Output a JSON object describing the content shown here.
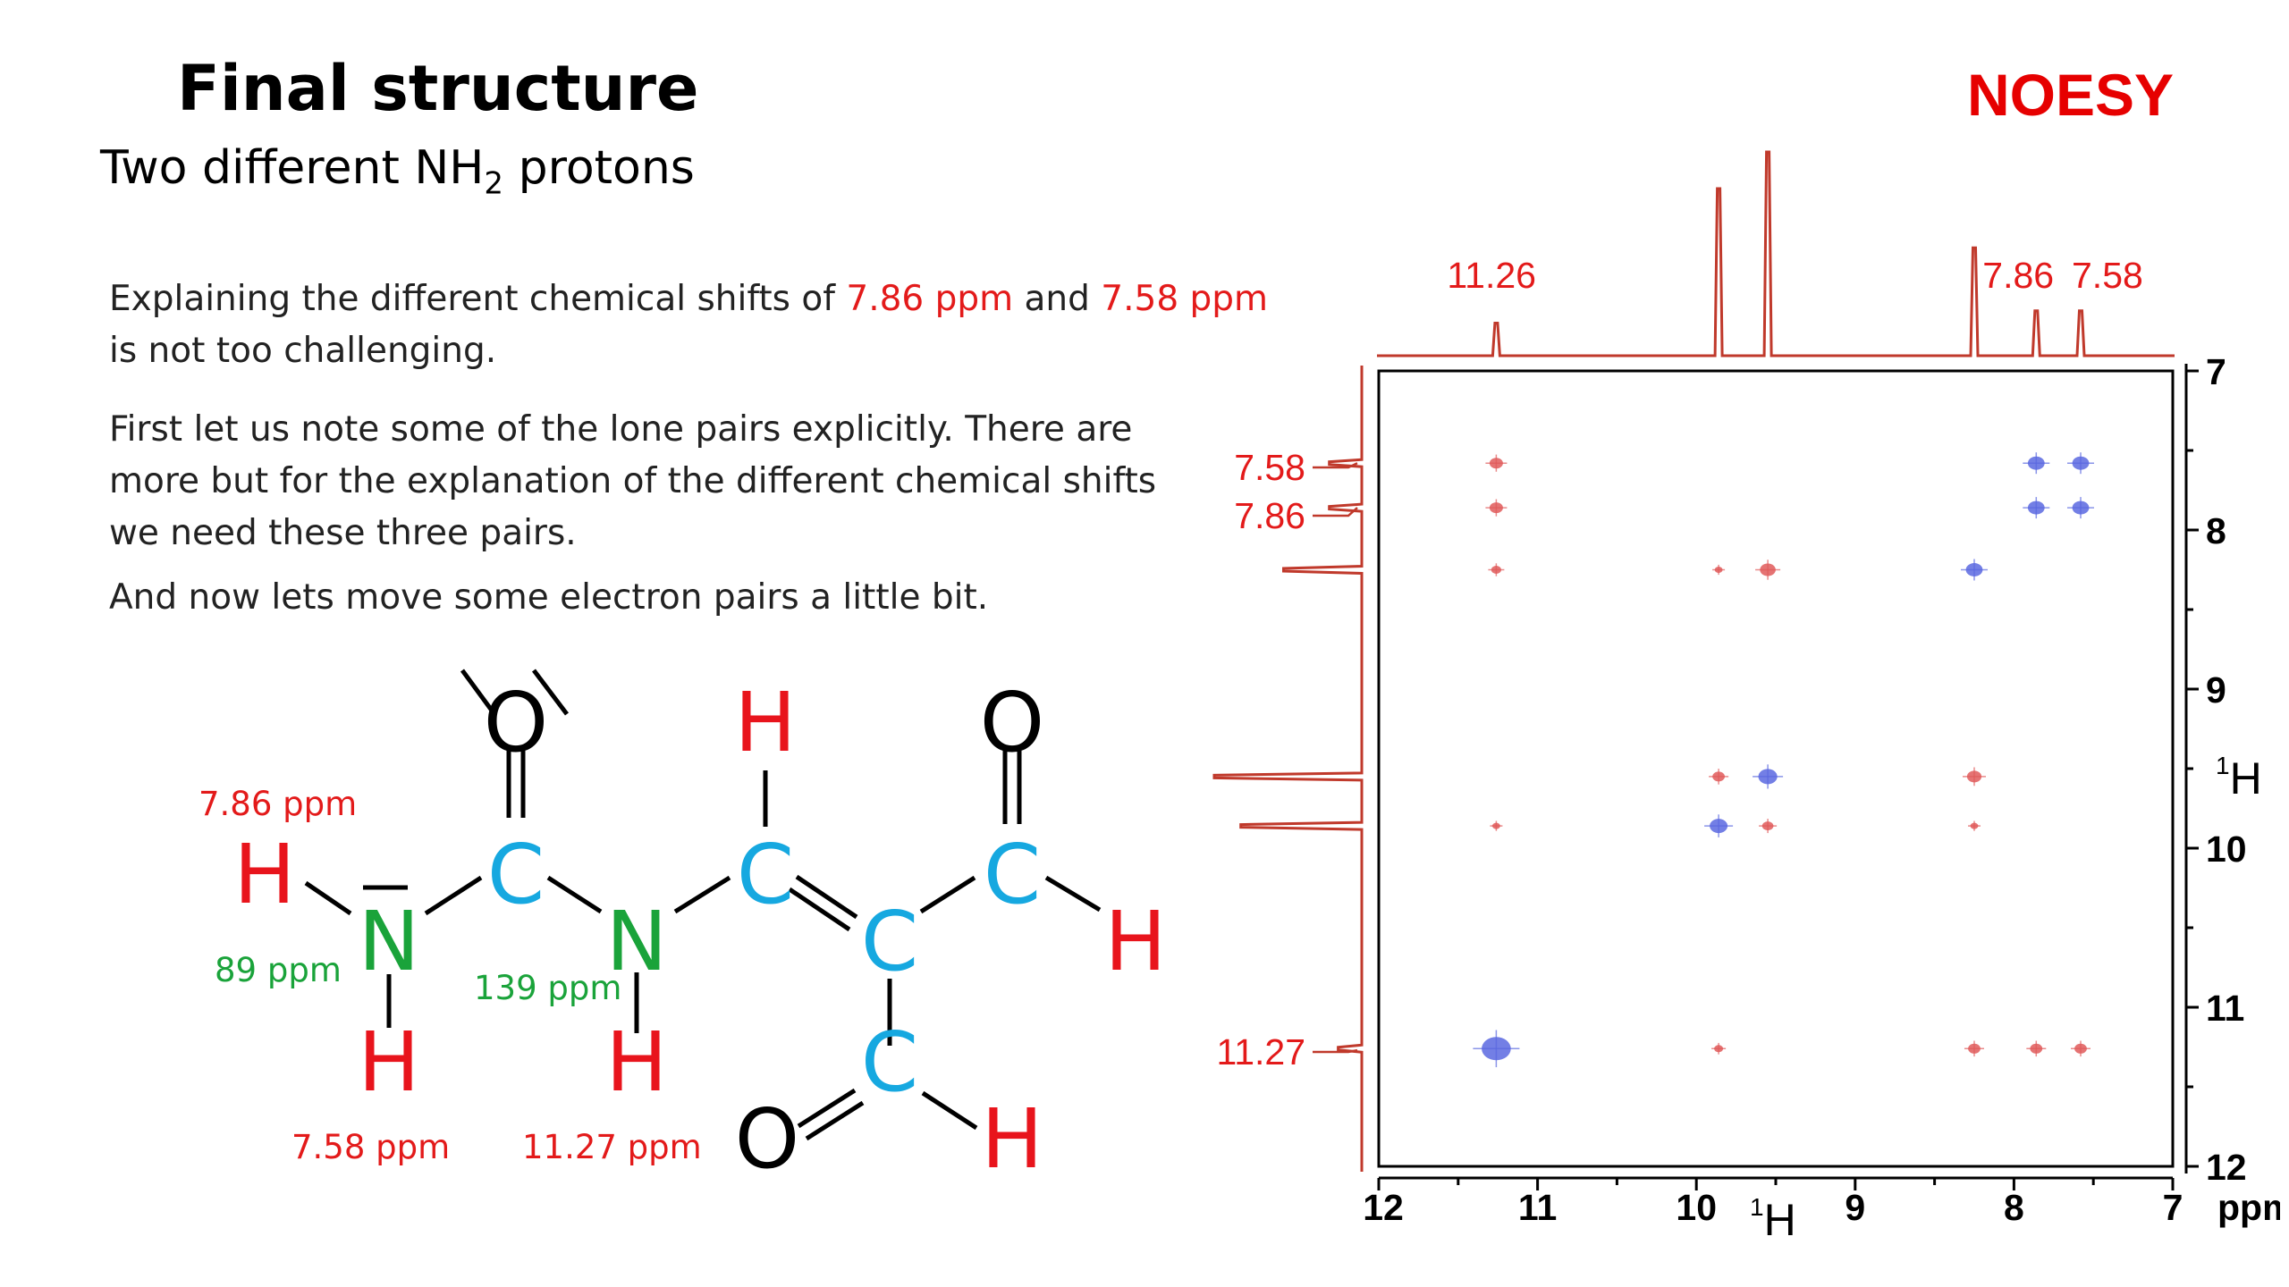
{
  "slide": {
    "title": "Final structure",
    "subtitle_main": "Two different NH",
    "subtitle_sub": "2",
    "subtitle_end": "protons",
    "technique_label": "NOESY",
    "paragraph1": {
      "part1": "Explaining the different chemical shifts of ",
      "shift_a": "7.86 ppm",
      "and": " and ",
      "shift_b": "7.58 ppm",
      "part2": " is not too challenging."
    },
    "paragraph2": "First let us note some of the lone pairs explicitly. There are more but for the explanation of the different chemical shifts we need these three pairs.",
    "paragraph3": "And now lets move some electron pairs a little bit."
  },
  "structure": {
    "atoms": {
      "O": "O",
      "H": "H",
      "C": "C",
      "N": "N"
    },
    "labels": {
      "h_top_left": "7.86 ppm",
      "h_bottom_left": "7.58 ppm",
      "h_nh": "11.27 ppm",
      "n_left": "89 ppm",
      "n_middle": "139 ppm"
    },
    "colors": {
      "hydrogen": "#e8141c",
      "carbon": "#16a8e0",
      "nitrogen": "#1aa33a",
      "oxygen": "#000000",
      "nitrogen_shift_text": "#1aa33a",
      "proton_shift_text": "#e31a1a"
    }
  },
  "spectrum": {
    "axis_color": "#000000",
    "trace_color": "#c0392b",
    "top_labels": [
      "11.26",
      "7.86",
      "7.58"
    ],
    "left_labels": [
      "7.58",
      "7.86",
      "11.27"
    ],
    "x_ticks": [
      "12",
      "11",
      "10",
      "9",
      "8",
      "7"
    ],
    "y_ticks": [
      "7",
      "8",
      "9",
      "10",
      "11",
      "12"
    ],
    "x_axis_nucleus": "1",
    "x_axis_letter": "H",
    "y_axis_nucleus": "1",
    "y_axis_letter": "H",
    "unit": "ppm",
    "x_range": [
      12,
      7
    ],
    "y_range": [
      7,
      12
    ],
    "positive_color": "#e05a5a",
    "negative_color": "#5a68e0",
    "cross_peaks": [
      {
        "x": 11.26,
        "y": 7.58,
        "sign": "pos",
        "size": 1
      },
      {
        "x": 11.26,
        "y": 7.86,
        "sign": "pos",
        "size": 1
      },
      {
        "x": 11.26,
        "y": 8.25,
        "sign": "pos",
        "size": 0.7
      },
      {
        "x": 9.86,
        "y": 8.25,
        "sign": "pos",
        "size": 0.5
      },
      {
        "x": 9.55,
        "y": 8.25,
        "sign": "pos",
        "size": 1.2
      },
      {
        "x": 8.25,
        "y": 8.25,
        "sign": "neg",
        "size": 1.3
      },
      {
        "x": 7.86,
        "y": 7.58,
        "sign": "neg",
        "size": 1.3
      },
      {
        "x": 7.58,
        "y": 7.58,
        "sign": "neg",
        "size": 1.3
      },
      {
        "x": 7.86,
        "y": 7.86,
        "sign": "neg",
        "size": 1.3
      },
      {
        "x": 7.58,
        "y": 7.86,
        "sign": "neg",
        "size": 1.3
      },
      {
        "x": 9.86,
        "y": 9.55,
        "sign": "pos",
        "size": 0.9
      },
      {
        "x": 9.55,
        "y": 9.55,
        "sign": "neg",
        "size": 1.5
      },
      {
        "x": 8.25,
        "y": 9.55,
        "sign": "pos",
        "size": 1.1
      },
      {
        "x": 11.26,
        "y": 9.86,
        "sign": "pos",
        "size": 0.5
      },
      {
        "x": 9.86,
        "y": 9.86,
        "sign": "neg",
        "size": 1.4
      },
      {
        "x": 9.55,
        "y": 9.86,
        "sign": "pos",
        "size": 0.8
      },
      {
        "x": 8.25,
        "y": 9.86,
        "sign": "pos",
        "size": 0.5
      },
      {
        "x": 11.26,
        "y": 11.26,
        "sign": "neg",
        "size": 2.4
      },
      {
        "x": 9.86,
        "y": 11.26,
        "sign": "pos",
        "size": 0.6
      },
      {
        "x": 8.25,
        "y": 11.26,
        "sign": "pos",
        "size": 0.9
      },
      {
        "x": 7.86,
        "y": 11.26,
        "sign": "pos",
        "size": 0.9
      },
      {
        "x": 7.58,
        "y": 11.26,
        "sign": "pos",
        "size": 0.9
      }
    ],
    "peaks_1d": [
      {
        "ppm": 11.26,
        "height": 0.16
      },
      {
        "ppm": 9.86,
        "height": 0.82
      },
      {
        "ppm": 9.55,
        "height": 1.0
      },
      {
        "ppm": 8.25,
        "height": 0.53
      },
      {
        "ppm": 7.86,
        "height": 0.22
      },
      {
        "ppm": 7.58,
        "height": 0.22
      }
    ]
  }
}
